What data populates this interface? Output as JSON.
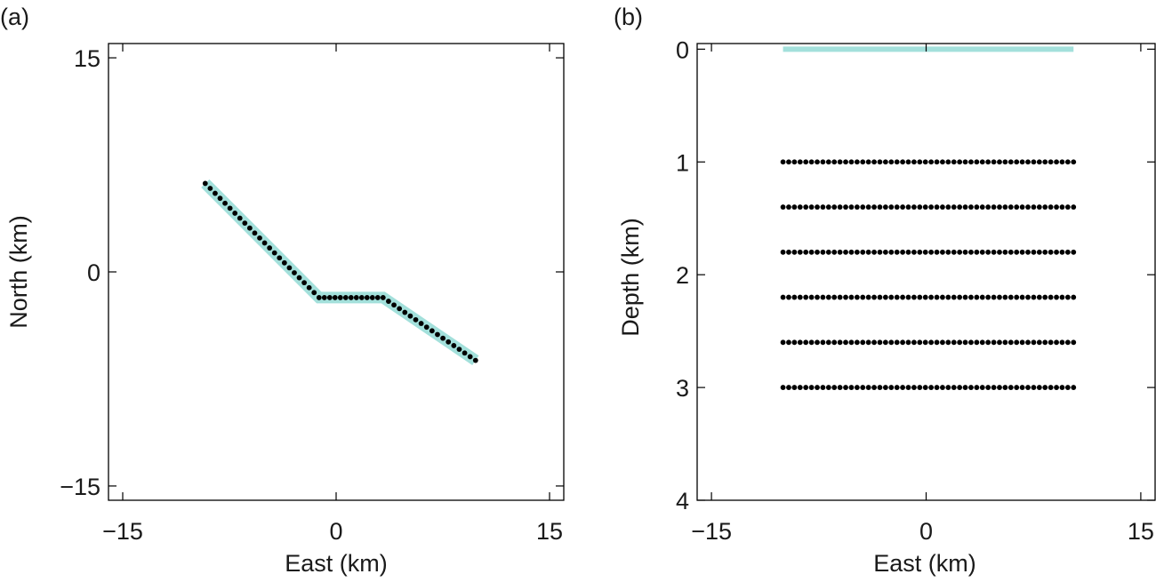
{
  "chart_data": [
    {
      "panel_label": "(a)",
      "type": "scatter",
      "xlabel": "East (km)",
      "ylabel": "North (km)",
      "xlim": [
        -16,
        16
      ],
      "ylim": [
        -16,
        16
      ],
      "xticks": [
        -15,
        0,
        15
      ],
      "xtick_labels": [
        "−15",
        "0",
        "15"
      ],
      "yticks": [
        -15,
        0,
        15
      ],
      "ytick_labels": [
        "−15",
        "0",
        "15"
      ],
      "grid": false,
      "fault_trace": {
        "color": "#a3e0db",
        "x": [
          -9.2,
          -1.2,
          3.3,
          9.8
        ],
        "y": [
          6.2,
          -1.8,
          -1.8,
          -6.2
        ]
      },
      "patch_points": {
        "color": "#000000",
        "start": [
          -9.2,
          6.2
        ],
        "vertices": [
          [
            -1.2,
            -1.8
          ],
          [
            3.3,
            -1.8
          ]
        ],
        "end": [
          9.8,
          -6.2
        ],
        "segment_counts": [
          23,
          12,
          17
        ]
      }
    },
    {
      "panel_label": "(b)",
      "type": "scatter",
      "xlabel": "East (km)",
      "ylabel": "Depth (km)",
      "xlim": [
        -16,
        16
      ],
      "ylim": [
        4,
        -0.05
      ],
      "xticks": [
        -15,
        0,
        15
      ],
      "xtick_labels": [
        "−15",
        "0",
        "15"
      ],
      "yticks": [
        0,
        1,
        2,
        3,
        4
      ],
      "ytick_labels": [
        "0",
        "1",
        "2",
        "3",
        "4"
      ],
      "grid": false,
      "surface_trace": {
        "color": "#a3e0db",
        "x": [
          -10,
          10.3
        ],
        "depth": 0
      },
      "patch_rows": {
        "color": "#000000",
        "depths": [
          1.0,
          1.4,
          1.8,
          2.2,
          2.6,
          3.0
        ],
        "x_start": -10,
        "x_end": 10.3,
        "points_per_row": 52
      }
    }
  ]
}
